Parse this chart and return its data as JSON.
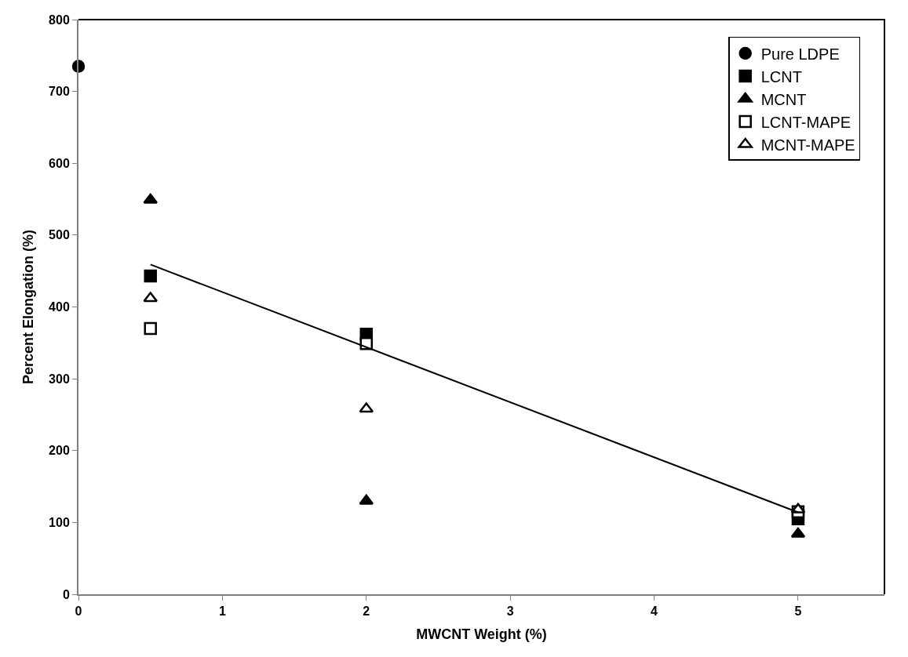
{
  "chart_data": {
    "type": "scatter",
    "xlabel": "MWCNT Weight (%)",
    "ylabel": "Percent Elongation (%)",
    "xlim": [
      0,
      5.6
    ],
    "xticks": [
      0,
      1,
      2,
      3,
      4,
      5
    ],
    "ylim": [
      0,
      800
    ],
    "yticks": [
      0,
      100,
      200,
      300,
      400,
      500,
      600,
      700,
      800
    ],
    "grid": false,
    "legend": "top right",
    "series": [
      {
        "name": "Pure LDPE",
        "color": "#000000",
        "marker": "circle",
        "x": [
          0
        ],
        "values": [
          735
        ]
      },
      {
        "name": "LCNT",
        "color": "#000000",
        "marker": "square",
        "x": [
          0.5,
          2,
          5
        ],
        "values": [
          443,
          362,
          105
        ]
      },
      {
        "name": "MCNT",
        "color": "#000000",
        "marker": "triangle",
        "x": [
          0.5,
          2,
          5
        ],
        "values": [
          549,
          130,
          84
        ]
      },
      {
        "name": "LCNT-MAPE",
        "color": "#ffffff",
        "marker": "square",
        "x": [
          0.5,
          2,
          5
        ],
        "values": [
          370,
          349,
          115
        ]
      },
      {
        "name": "MCNT-MAPE",
        "color": "#ffffff",
        "marker": "triangle",
        "x": [
          0.5,
          2,
          5
        ],
        "values": [
          412,
          258,
          118
        ]
      },
      {
        "type": "line",
        "color": "#000000",
        "marker": "none",
        "x": [
          0.5,
          5
        ],
        "values": [
          459,
          114
        ]
      }
    ]
  }
}
